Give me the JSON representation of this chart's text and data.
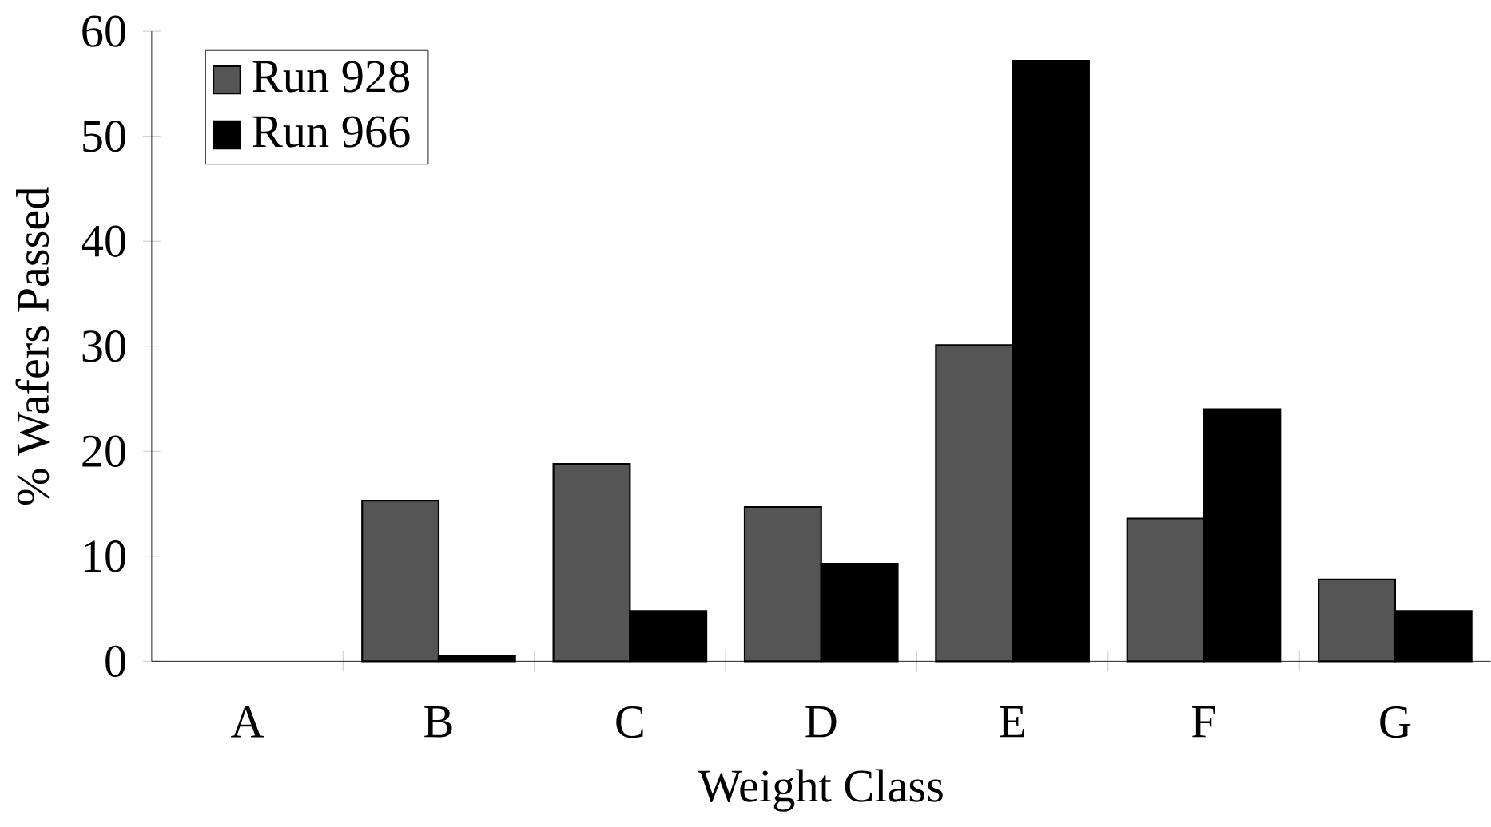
{
  "chart_data": {
    "type": "bar",
    "xlabel": "Weight Class",
    "ylabel": "% Wafers Passed",
    "categories": [
      "A",
      "B",
      "C",
      "D",
      "E",
      "F",
      "G"
    ],
    "series": [
      {
        "name": "Run 928",
        "color": "#555555",
        "values": [
          null,
          15.3,
          18.8,
          14.7,
          30.1,
          13.6,
          7.8
        ]
      },
      {
        "name": "Run 966",
        "color": "#000000",
        "values": [
          null,
          0.5,
          4.8,
          9.3,
          57.2,
          24.0,
          4.8
        ]
      }
    ],
    "ylim": [
      0,
      60
    ],
    "yticks": [
      0,
      10,
      20,
      30,
      40,
      50,
      60
    ],
    "legend": "top left"
  }
}
